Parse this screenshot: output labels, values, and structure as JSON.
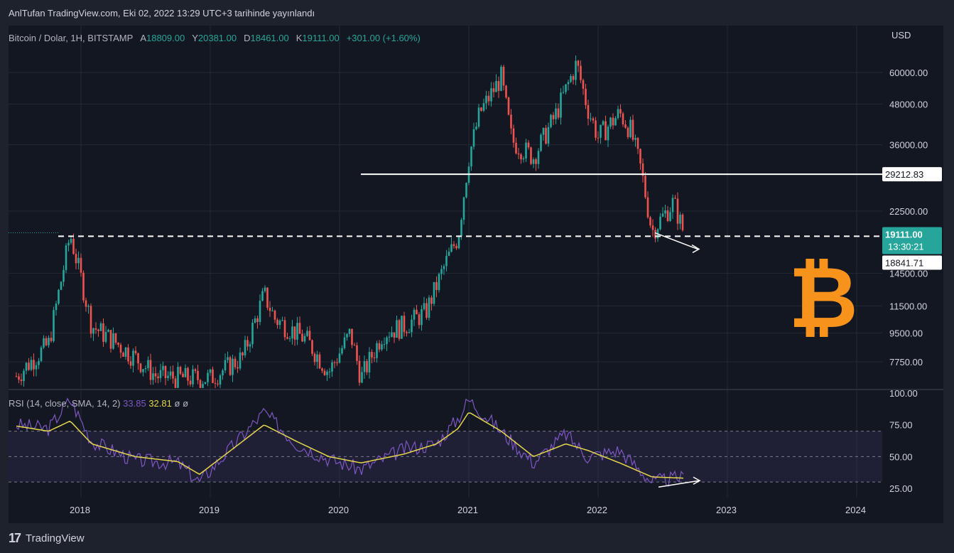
{
  "header": {
    "title": "AnlTufan TradingView.com, Eki 02, 2022 13:29 UTC+3 tarihinde yayınlandı"
  },
  "legend": {
    "symbol": "Bitcoin / Dolar, 1H, BITSTAMP",
    "open_label": "A",
    "open": "18809.00",
    "high_label": "Y",
    "high": "20381.00",
    "low_label": "D",
    "low": "18461.00",
    "close_label": "K",
    "close": "19111.00",
    "change": "+301.00 (+1.60%)"
  },
  "rsi_legend": {
    "name": "RSI (14, close, SMA, 14, 2)",
    "rsi": "33.85",
    "sma": "32.81",
    "extra1": "ø",
    "extra2": "ø"
  },
  "price_axis": {
    "currency": "USD",
    "ticks": [
      "60000.00",
      "48000.00",
      "36000.00",
      "22500.00",
      "14500.00",
      "11500.00",
      "9500.00",
      "7750.00"
    ],
    "tick_values": [
      60000,
      48000,
      36000,
      22500,
      14500,
      11500,
      9500,
      7750
    ],
    "labels": {
      "resistance": "29212.83",
      "last": "19111.00",
      "countdown": "13:30:21",
      "support": "18841.71"
    }
  },
  "rsi_axis": {
    "ticks": [
      "100.00",
      "75.00",
      "50.00",
      "25.00"
    ],
    "tick_values": [
      100,
      75,
      50,
      25
    ]
  },
  "time_axis": {
    "labels": [
      "2018",
      "2019",
      "2020",
      "2021",
      "2022",
      "2023",
      "2024"
    ]
  },
  "footer": {
    "brand": "TradingView"
  },
  "colors": {
    "up": "#26a69a",
    "down": "#ef5350",
    "background": "#131722",
    "rsi": "#7e57c2",
    "rsi_sma": "#e5d74c",
    "accent_label": "#26a69a",
    "bitcoin": "#f7931a"
  },
  "icons": {
    "bitcoin": "bitcoin-logo",
    "tradingview": "tradingview-logo"
  },
  "chart_data": [
    {
      "type": "candlestick",
      "title": "Bitcoin / Dolar, 1H, BITSTAMP",
      "ylabel": "USD",
      "scale": "log",
      "ylim": [
        6900,
        72000
      ],
      "x": [
        "2017-07",
        "2017-10",
        "2017-12",
        "2018-01",
        "2018-02",
        "2018-04",
        "2018-06",
        "2018-08",
        "2018-11",
        "2019-01",
        "2019-04",
        "2019-06",
        "2019-07",
        "2019-09",
        "2019-10",
        "2019-12",
        "2020-02",
        "2020-03",
        "2020-05",
        "2020-07",
        "2020-09",
        "2020-11",
        "2020-12",
        "2021-01",
        "2021-02",
        "2021-04",
        "2021-05",
        "2021-07",
        "2021-09",
        "2021-11",
        "2021-12",
        "2022-01",
        "2022-03",
        "2022-04",
        "2022-05",
        "2022-06",
        "2022-08",
        "2022-09"
      ],
      "close": [
        7000,
        8800,
        19100,
        14000,
        10000,
        9000,
        8000,
        7000,
        6900,
        6900,
        8000,
        12500,
        10500,
        9500,
        9000,
        7200,
        9500,
        6900,
        9500,
        10000,
        11000,
        16000,
        18800,
        33000,
        45000,
        58000,
        37000,
        33000,
        44000,
        64000,
        47000,
        38000,
        45000,
        40000,
        30000,
        19500,
        24000,
        19111
      ],
      "horizontal_lines": [
        {
          "label": "29212.83",
          "value": 29212.83,
          "style": "solid"
        },
        {
          "label": "18841.71",
          "value": 18841.71,
          "style": "dashed"
        }
      ],
      "last_price": 19111.0
    },
    {
      "type": "line",
      "title": "RSI (14, close, SMA, 14, 2)",
      "ylim": [
        25,
        100
      ],
      "bands": [
        30,
        50,
        70
      ],
      "x": [
        "2017-07",
        "2017-10",
        "2017-12",
        "2018-02",
        "2018-06",
        "2018-10",
        "2018-12",
        "2019-06",
        "2019-09",
        "2019-12",
        "2020-03",
        "2020-07",
        "2020-10",
        "2020-12",
        "2021-01",
        "2021-04",
        "2021-07",
        "2021-10",
        "2021-12",
        "2022-03",
        "2022-06",
        "2022-09"
      ],
      "series": [
        {
          "name": "RSI",
          "values": [
            75,
            72,
            95,
            62,
            47,
            45,
            30,
            85,
            60,
            48,
            40,
            56,
            60,
            80,
            95,
            70,
            45,
            68,
            50,
            55,
            30,
            34
          ]
        },
        {
          "name": "SMA",
          "values": [
            74,
            70,
            78,
            60,
            50,
            46,
            36,
            75,
            62,
            50,
            45,
            52,
            60,
            72,
            85,
            70,
            50,
            60,
            55,
            45,
            34,
            33
          ]
        }
      ]
    }
  ]
}
